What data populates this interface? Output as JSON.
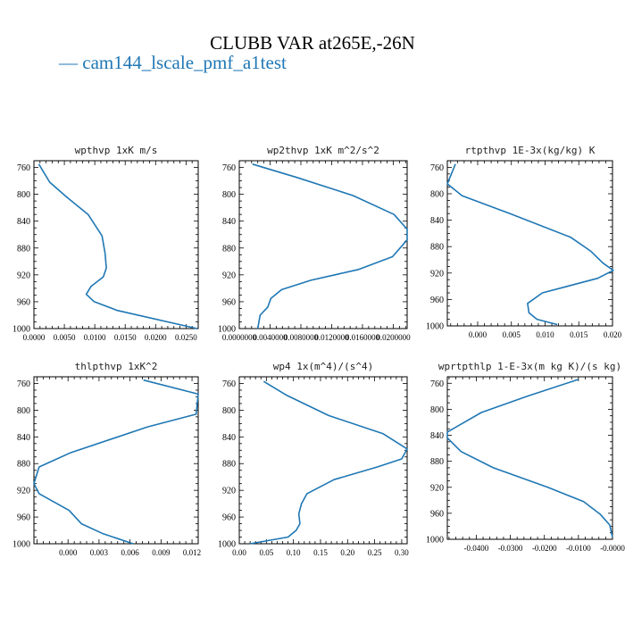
{
  "figure": {
    "title": "CLUBB VAR at265E,-26N",
    "legend": "— cam144_lscale_pmf_a1test",
    "series_color": "#1f77b4"
  },
  "chart_data": [
    {
      "type": "line",
      "title": "wpthvp  1xK m/s",
      "ylim": [
        1000,
        750
      ],
      "yticks": [
        760,
        800,
        840,
        880,
        920,
        960,
        1000
      ],
      "xlim": [
        0,
        0.027
      ],
      "xticks": [
        0.0,
        0.005,
        0.01,
        0.015,
        0.02,
        0.025
      ],
      "xtick_labels": [
        "0.0000",
        "0.0050",
        "0.0100",
        "0.0150",
        "0.0200",
        "0.0250"
      ],
      "series": [
        {
          "x": [
            0.0008,
            0.0026,
            0.0055,
            0.0089,
            0.0112,
            0.0117,
            0.0119,
            0.0114,
            0.0094,
            0.0086,
            0.0099,
            0.0137,
            0.0268
          ],
          "y": [
            755,
            782,
            805,
            830,
            862,
            888,
            910,
            923,
            937,
            949,
            960,
            973,
            1000
          ]
        }
      ]
    },
    {
      "type": "line",
      "title": "wp2thvp  1xK m^2/s^2",
      "ylim": [
        1000,
        750
      ],
      "yticks": [
        760,
        800,
        840,
        880,
        920,
        960,
        1000
      ],
      "xlim": [
        0,
        0.0218
      ],
      "xticks": [
        0.0,
        0.004,
        0.008,
        0.012,
        0.016,
        0.02
      ],
      "xtick_labels": [
        "0.0000000",
        "0.0040000",
        "0.0080000",
        "0.0120000",
        "0.0160000",
        "0.0200000"
      ],
      "series": [
        {
          "x": [
            0.0017,
            0.0075,
            0.0148,
            0.0201,
            0.0218,
            0.0218,
            0.0199,
            0.0155,
            0.0093,
            0.0055,
            0.0041,
            0.0037,
            0.0027,
            0.0024
          ],
          "y": [
            755,
            775,
            802,
            830,
            852,
            868,
            893,
            912,
            928,
            942,
            955,
            968,
            980,
            1000
          ]
        }
      ]
    },
    {
      "type": "line",
      "title": "rtpthvp  1E-3x(kg/kg) K",
      "ylim": [
        1000,
        750
      ],
      "yticks": [
        760,
        800,
        840,
        880,
        920,
        960,
        1000
      ],
      "xlim": [
        -0.0045,
        0.02
      ],
      "xticks": [
        0.0,
        0.005,
        0.01,
        0.015,
        0.02
      ],
      "xtick_labels": [
        "0.000",
        "0.005",
        "0.010",
        "0.015",
        "0.020"
      ],
      "series": [
        {
          "x": [
            -0.0033,
            -0.0045,
            -0.0023,
            0.0048,
            0.0138,
            0.0168,
            0.0186,
            0.0201,
            0.0178,
            0.0096,
            0.0074,
            0.0076,
            0.0088,
            0.0118
          ],
          "y": [
            755,
            785,
            803,
            830,
            866,
            887,
            905,
            916,
            928,
            950,
            966,
            980,
            990,
            998
          ]
        }
      ]
    },
    {
      "type": "line",
      "title": "thlpthvp  1xK^2",
      "ylim": [
        1000,
        750
      ],
      "yticks": [
        760,
        800,
        840,
        880,
        920,
        960,
        1000
      ],
      "xlim": [
        -0.0033,
        0.0126
      ],
      "xticks": [
        0.0,
        0.003,
        0.006,
        0.009,
        0.012
      ],
      "xtick_labels": [
        "0.000",
        "0.003",
        "0.006",
        "0.009",
        "0.012"
      ],
      "series": [
        {
          "x": [
            0.0073,
            0.0126,
            0.0124,
            0.0077,
            0.0002,
            -0.0028,
            -0.0033,
            -0.0028,
            0.0001,
            0.0013,
            0.0034,
            0.0063
          ],
          "y": [
            755,
            776,
            806,
            825,
            864,
            885,
            910,
            925,
            950,
            970,
            985,
            1000
          ]
        }
      ]
    },
    {
      "type": "line",
      "title": "wp4  1x(m^4)/(s^4)",
      "ylim": [
        1000,
        750
      ],
      "yticks": [
        760,
        800,
        840,
        880,
        920,
        960,
        1000
      ],
      "xlim": [
        0,
        0.31
      ],
      "xticks": [
        0.0,
        0.05,
        0.1,
        0.15,
        0.2,
        0.25,
        0.3
      ],
      "xtick_labels": [
        "0.00",
        "0.05",
        "0.10",
        "0.15",
        "0.20",
        "0.25",
        "0.30"
      ],
      "series": [
        {
          "x": [
            0.045,
            0.088,
            0.165,
            0.265,
            0.31,
            0.3,
            0.255,
            0.175,
            0.125,
            0.115,
            0.11,
            0.112,
            0.105,
            0.09,
            0.02
          ],
          "y": [
            757,
            778,
            808,
            835,
            858,
            873,
            885,
            904,
            925,
            940,
            955,
            970,
            980,
            990,
            1000
          ]
        }
      ]
    },
    {
      "type": "line",
      "title": "wprtpthlp  1-E-3x(m kg K)/(s kg)",
      "ylim": [
        1000,
        750
      ],
      "yticks": [
        760,
        800,
        840,
        880,
        920,
        960,
        1000
      ],
      "xlim": [
        -0.0485,
        0.0
      ],
      "xticks": [
        -0.04,
        -0.03,
        -0.02,
        -0.01,
        0.0
      ],
      "xtick_labels": [
        "-0.0400",
        "-0.0300",
        "-0.0200",
        "-0.0100",
        "-0.0000"
      ],
      "series": [
        {
          "x": [
            -0.01,
            -0.025,
            -0.0385,
            -0.0485,
            -0.0485,
            -0.0445,
            -0.035,
            -0.019,
            -0.0085,
            -0.0035,
            -0.0008,
            0.0
          ],
          "y": [
            754,
            780,
            805,
            835,
            844,
            865,
            890,
            920,
            942,
            962,
            978,
            997
          ]
        }
      ]
    }
  ]
}
